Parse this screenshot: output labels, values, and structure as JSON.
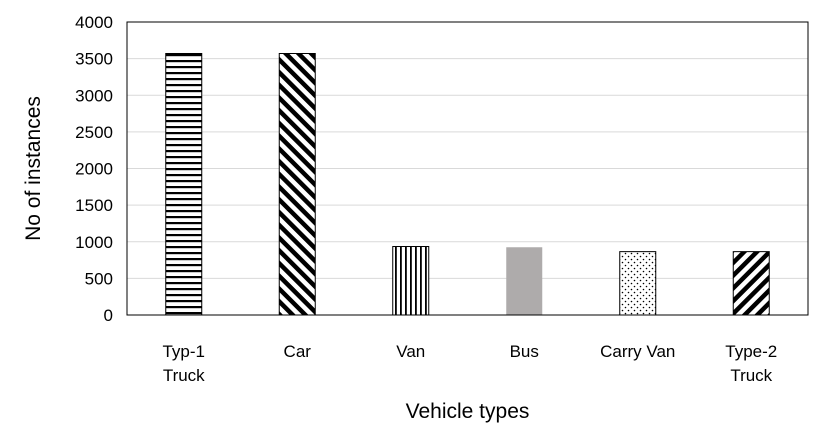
{
  "chart_data": {
    "type": "bar",
    "title": "",
    "xlabel": "Vehicle types",
    "ylabel": "No of instances",
    "ylim": [
      0,
      4000
    ],
    "yticks": [
      0,
      500,
      1000,
      1500,
      2000,
      2500,
      3000,
      3500,
      4000
    ],
    "grid": true,
    "legend": "none",
    "categories": [
      {
        "lines": [
          "Typ-1",
          "Truck"
        ],
        "value": 3570,
        "pattern": "horizontal-stripes"
      },
      {
        "lines": [
          "Car"
        ],
        "value": 3570,
        "pattern": "diagonal-backslash"
      },
      {
        "lines": [
          "Van"
        ],
        "value": 935,
        "pattern": "vertical-stripes"
      },
      {
        "lines": [
          "Bus"
        ],
        "value": 925,
        "pattern": "solid-gray"
      },
      {
        "lines": [
          "Carry Van"
        ],
        "value": 865,
        "pattern": "dots"
      },
      {
        "lines": [
          "Type-2",
          "Truck"
        ],
        "value": 865,
        "pattern": "diagonal-forward"
      }
    ],
    "colors": {
      "bar_fill": "#000000",
      "bus_fill": "#aeabab",
      "grid": "#d9d9d9",
      "frame": "#000000"
    }
  }
}
